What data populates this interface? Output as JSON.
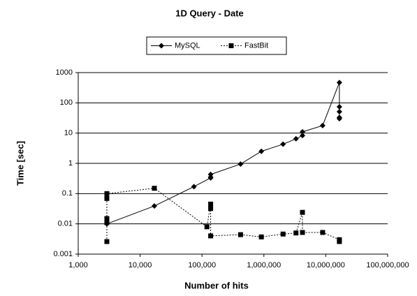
{
  "chart_data": {
    "type": "line",
    "title": "1D Query - Date",
    "xlabel": "Number of hits",
    "ylabel": "Time [sec]",
    "xscale": "log",
    "yscale": "log",
    "grid": true,
    "legend": "top",
    "xlim": [
      1000,
      100000000
    ],
    "xticks": [
      {
        "value": 1000,
        "label": "1,000"
      },
      {
        "value": 10000,
        "label": "10,000"
      },
      {
        "value": 100000,
        "label": "100,000"
      },
      {
        "value": 1000000,
        "label": "1,000,000"
      },
      {
        "value": 10000000,
        "label": "10,000,000"
      },
      {
        "value": 100000000,
        "label": "100,000,000"
      }
    ],
    "ylim": [
      0.001,
      1000
    ],
    "yticks": [
      0.001,
      0.01,
      0.1,
      1,
      10,
      100,
      1000
    ],
    "series": [
      {
        "name": "MySQL",
        "color": "#000000",
        "line": "solid",
        "marker": "diamond",
        "x": [
          2900,
          17000,
          74000,
          138000,
          138000,
          138000,
          420000,
          910000,
          2040000,
          3300000,
          4200000,
          4200000,
          8900000,
          16600000,
          16600000,
          16600000,
          16600000,
          16600000
        ],
        "values": [
          0.01,
          0.039,
          0.17,
          0.33,
          0.35,
          0.43,
          0.95,
          2.5,
          4.3,
          6.5,
          8.3,
          11,
          17.8,
          470,
          74,
          51,
          33,
          30
        ]
      },
      {
        "name": "FastBit",
        "color": "#000000",
        "line": "dotted",
        "marker": "square",
        "x": [
          2900,
          2900,
          2900,
          2900,
          2900,
          17000,
          120000,
          138000,
          138000,
          138000,
          420000,
          910000,
          2040000,
          3300000,
          4200000,
          4200000,
          8900000,
          16600000,
          16600000
        ],
        "values": [
          0.0026,
          0.011,
          0.015,
          0.069,
          0.1,
          0.15,
          0.008,
          0.045,
          0.032,
          0.004,
          0.0044,
          0.0037,
          0.0046,
          0.005,
          0.024,
          0.0052,
          0.0052,
          0.003,
          0.0026
        ]
      }
    ]
  }
}
